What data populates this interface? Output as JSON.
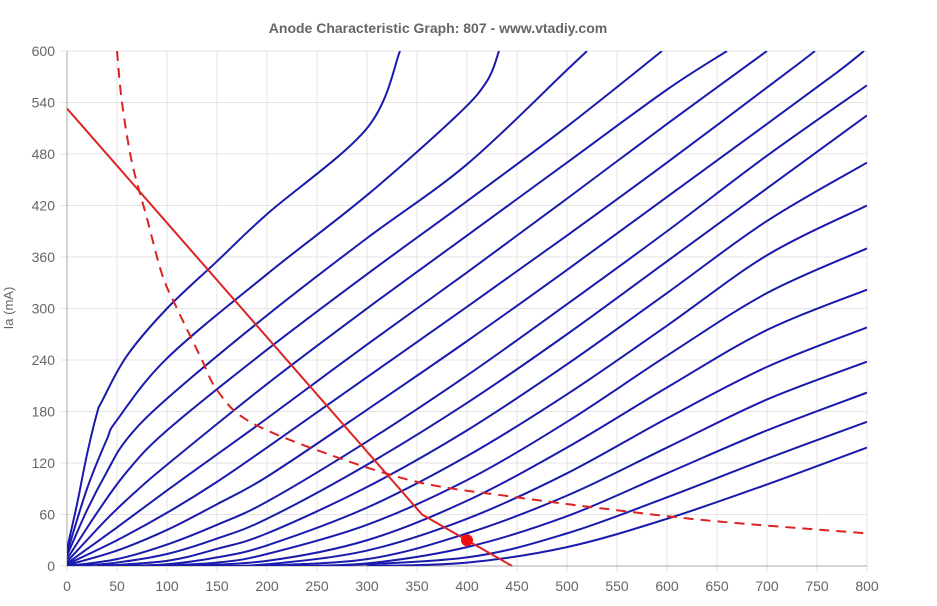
{
  "chart_data": {
    "type": "line",
    "title": "Anode Characteristic Graph: 807 - www.vtadiy.com",
    "xlabel": "",
    "ylabel": "Ia (mA)",
    "xlim": [
      0,
      800
    ],
    "ylim": [
      0,
      600
    ],
    "x_ticks": [
      0,
      50,
      100,
      150,
      200,
      250,
      300,
      350,
      400,
      450,
      500,
      550,
      600,
      650,
      700,
      750,
      800
    ],
    "y_ticks": [
      0,
      60,
      120,
      180,
      240,
      300,
      360,
      420,
      480,
      540,
      600
    ],
    "grid": true,
    "legend": "none",
    "colors": {
      "curves": "#1a1aad",
      "load_line": "#dd2222",
      "power_curve": "#dd2222",
      "operating_point": "#ee1111",
      "grid": "#e3e3e3",
      "axis": "#aaaaaa",
      "text": "#666666"
    },
    "series": [
      {
        "style": "solid",
        "color": "#1a1aad",
        "points": [
          [
            0,
            20
          ],
          [
            10,
            72
          ],
          [
            20,
            130
          ],
          [
            30,
            178
          ],
          [
            35,
            192
          ],
          [
            60,
            245
          ],
          [
            100,
            300
          ],
          [
            150,
            355
          ],
          [
            200,
            410
          ],
          [
            300,
            510
          ],
          [
            333,
            600
          ]
        ]
      },
      {
        "style": "solid",
        "color": "#1a1aad",
        "points": [
          [
            0,
            15
          ],
          [
            20,
            90
          ],
          [
            40,
            148
          ],
          [
            50,
            170
          ],
          [
            100,
            242
          ],
          [
            200,
            340
          ],
          [
            300,
            432
          ],
          [
            390,
            525
          ],
          [
            420,
            565
          ],
          [
            432,
            600
          ]
        ]
      },
      {
        "style": "solid",
        "color": "#1a1aad",
        "points": [
          [
            0,
            12
          ],
          [
            20,
            65
          ],
          [
            40,
            110
          ],
          [
            60,
            148
          ],
          [
            100,
            195
          ],
          [
            200,
            292
          ],
          [
            300,
            382
          ],
          [
            400,
            468
          ],
          [
            500,
            578
          ],
          [
            520,
            600
          ]
        ]
      },
      {
        "style": "solid",
        "color": "#1a1aad",
        "points": [
          [
            0,
            8
          ],
          [
            30,
            62
          ],
          [
            60,
            110
          ],
          [
            100,
            158
          ],
          [
            200,
            252
          ],
          [
            300,
            340
          ],
          [
            400,
            425
          ],
          [
            500,
            512
          ],
          [
            595,
            600
          ]
        ]
      },
      {
        "style": "solid",
        "color": "#1a1aad",
        "points": [
          [
            0,
            5
          ],
          [
            40,
            55
          ],
          [
            70,
            88
          ],
          [
            100,
            118
          ],
          [
            200,
            212
          ],
          [
            300,
            300
          ],
          [
            400,
            385
          ],
          [
            500,
            470
          ],
          [
            600,
            555
          ],
          [
            660,
            600
          ]
        ]
      },
      {
        "style": "solid",
        "color": "#1a1aad",
        "points": [
          [
            0,
            3
          ],
          [
            50,
            45
          ],
          [
            100,
            88
          ],
          [
            150,
            130
          ],
          [
            200,
            172
          ],
          [
            300,
            258
          ],
          [
            400,
            342
          ],
          [
            500,
            428
          ],
          [
            600,
            515
          ],
          [
            700,
            600
          ]
        ]
      },
      {
        "style": "solid",
        "color": "#1a1aad",
        "points": [
          [
            0,
            2
          ],
          [
            50,
            30
          ],
          [
            100,
            62
          ],
          [
            150,
            98
          ],
          [
            200,
            138
          ],
          [
            300,
            220
          ],
          [
            400,
            302
          ],
          [
            500,
            385
          ],
          [
            600,
            470
          ],
          [
            720,
            575
          ],
          [
            748,
            600
          ]
        ]
      },
      {
        "style": "solid",
        "color": "#1a1aad",
        "points": [
          [
            0,
            1
          ],
          [
            50,
            18
          ],
          [
            100,
            42
          ],
          [
            150,
            72
          ],
          [
            200,
            104
          ],
          [
            300,
            182
          ],
          [
            400,
            262
          ],
          [
            500,
            345
          ],
          [
            600,
            430
          ],
          [
            700,
            515
          ],
          [
            770,
            575
          ],
          [
            797,
            600
          ]
        ]
      },
      {
        "style": "solid",
        "color": "#1a1aad",
        "points": [
          [
            0,
            0
          ],
          [
            50,
            8
          ],
          [
            100,
            25
          ],
          [
            150,
            48
          ],
          [
            200,
            75
          ],
          [
            300,
            145
          ],
          [
            400,
            222
          ],
          [
            500,
            305
          ],
          [
            600,
            390
          ],
          [
            700,
            478
          ],
          [
            800,
            560
          ]
        ]
      },
      {
        "style": "solid",
        "color": "#1a1aad",
        "points": [
          [
            10,
            0
          ],
          [
            50,
            4
          ],
          [
            100,
            14
          ],
          [
            150,
            32
          ],
          [
            200,
            55
          ],
          [
            300,
            118
          ],
          [
            400,
            190
          ],
          [
            500,
            270
          ],
          [
            600,
            355
          ],
          [
            700,
            440
          ],
          [
            800,
            525
          ]
        ]
      },
      {
        "style": "solid",
        "color": "#1a1aad",
        "points": [
          [
            30,
            0
          ],
          [
            100,
            6
          ],
          [
            150,
            20
          ],
          [
            200,
            38
          ],
          [
            300,
            92
          ],
          [
            400,
            158
          ],
          [
            500,
            235
          ],
          [
            600,
            318
          ],
          [
            700,
            402
          ],
          [
            800,
            470
          ]
        ]
      },
      {
        "style": "solid",
        "color": "#1a1aad",
        "points": [
          [
            50,
            0
          ],
          [
            100,
            2
          ],
          [
            150,
            10
          ],
          [
            200,
            24
          ],
          [
            300,
            68
          ],
          [
            400,
            128
          ],
          [
            500,
            200
          ],
          [
            600,
            280
          ],
          [
            700,
            362
          ],
          [
            800,
            420
          ]
        ]
      },
      {
        "style": "solid",
        "color": "#1a1aad",
        "points": [
          [
            80,
            0
          ],
          [
            150,
            4
          ],
          [
            200,
            14
          ],
          [
            300,
            48
          ],
          [
            400,
            100
          ],
          [
            500,
            168
          ],
          [
            600,
            245
          ],
          [
            700,
            318
          ],
          [
            800,
            370
          ]
        ]
      },
      {
        "style": "solid",
        "color": "#1a1aad",
        "points": [
          [
            110,
            0
          ],
          [
            200,
            6
          ],
          [
            300,
            30
          ],
          [
            400,
            76
          ],
          [
            500,
            138
          ],
          [
            600,
            208
          ],
          [
            700,
            275
          ],
          [
            800,
            322
          ]
        ]
      },
      {
        "style": "solid",
        "color": "#1a1aad",
        "points": [
          [
            140,
            0
          ],
          [
            200,
            2
          ],
          [
            300,
            18
          ],
          [
            400,
            55
          ],
          [
            500,
            108
          ],
          [
            600,
            172
          ],
          [
            700,
            232
          ],
          [
            800,
            278
          ]
        ]
      },
      {
        "style": "solid",
        "color": "#1a1aad",
        "points": [
          [
            180,
            0
          ],
          [
            300,
            8
          ],
          [
            400,
            38
          ],
          [
            500,
            82
          ],
          [
            600,
            138
          ],
          [
            700,
            194
          ],
          [
            800,
            238
          ]
        ]
      },
      {
        "style": "solid",
        "color": "#1a1aad",
        "points": [
          [
            220,
            0
          ],
          [
            300,
            3
          ],
          [
            400,
            22
          ],
          [
            500,
            58
          ],
          [
            600,
            108
          ],
          [
            700,
            158
          ],
          [
            800,
            202
          ]
        ]
      },
      {
        "style": "solid",
        "color": "#1a1aad",
        "points": [
          [
            260,
            0
          ],
          [
            400,
            10
          ],
          [
            500,
            38
          ],
          [
            600,
            80
          ],
          [
            700,
            125
          ],
          [
            800,
            168
          ]
        ]
      },
      {
        "style": "solid",
        "color": "#1a1aad",
        "points": [
          [
            300,
            0
          ],
          [
            400,
            4
          ],
          [
            500,
            22
          ],
          [
            600,
            55
          ],
          [
            700,
            95
          ],
          [
            800,
            138
          ]
        ]
      },
      {
        "style": "solid",
        "color": "#dd2222",
        "points": [
          [
            0,
            533
          ],
          [
            355,
            60
          ],
          [
            445,
            0
          ]
        ]
      },
      {
        "style": "dashed",
        "color": "#dd2222",
        "points": [
          [
            50,
            600
          ],
          [
            55,
            540
          ],
          [
            65,
            470
          ],
          [
            80,
            405
          ],
          [
            95,
            340
          ],
          [
            110,
            300
          ],
          [
            135,
            240
          ],
          [
            150,
            205
          ],
          [
            180,
            170
          ],
          [
            250,
            135
          ],
          [
            350,
            98
          ],
          [
            450,
            80
          ],
          [
            550,
            65
          ],
          [
            650,
            52
          ],
          [
            800,
            38
          ]
        ]
      }
    ],
    "operating_point": {
      "x": 400,
      "y": 30,
      "color": "#ee1111"
    }
  }
}
